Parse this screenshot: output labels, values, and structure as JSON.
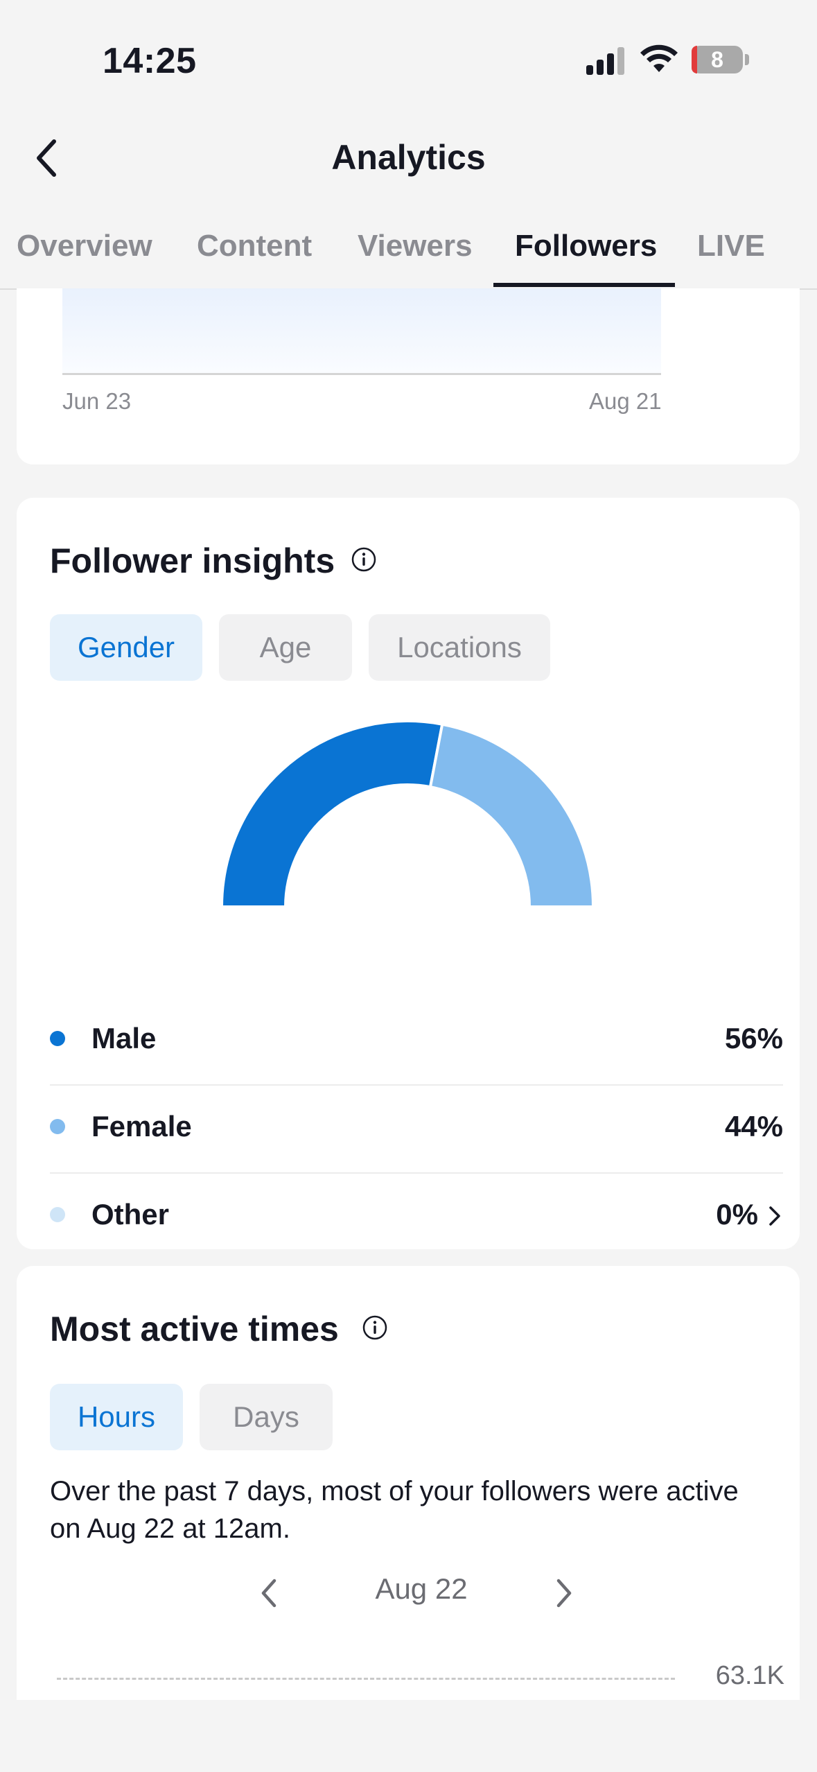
{
  "status_bar": {
    "time": "14:25",
    "battery": "8"
  },
  "header": {
    "title": "Analytics"
  },
  "tabs": [
    {
      "label": "Overview",
      "active": false
    },
    {
      "label": "Content",
      "active": false
    },
    {
      "label": "Viewers",
      "active": false
    },
    {
      "label": "Followers",
      "active": true
    },
    {
      "label": "LIVE",
      "active": false
    }
  ],
  "followers_chart": {
    "x_start": "Jun 23",
    "x_end": "Aug 21"
  },
  "follower_insights": {
    "title": "Follower insights",
    "filters": [
      {
        "label": "Gender",
        "active": true
      },
      {
        "label": "Age",
        "active": false
      },
      {
        "label": "Locations",
        "active": false
      }
    ],
    "gender": [
      {
        "label": "Male",
        "value": "56%",
        "color": "#0a74d3"
      },
      {
        "label": "Female",
        "value": "44%",
        "color": "#82bbee"
      },
      {
        "label": "Other",
        "value": "0%",
        "color": "#cfe5f7"
      }
    ]
  },
  "most_active_times": {
    "title": "Most active times",
    "filters": [
      {
        "label": "Hours",
        "active": true
      },
      {
        "label": "Days",
        "active": false
      }
    ],
    "description": "Over the past 7 days, most of your followers were active on Aug 22 at 12am.",
    "date": "Aug 22",
    "y_tick": "63.1K"
  },
  "chart_data": {
    "type": "pie",
    "categories": [
      "Male",
      "Female",
      "Other"
    ],
    "values": [
      56,
      44,
      0
    ]
  }
}
